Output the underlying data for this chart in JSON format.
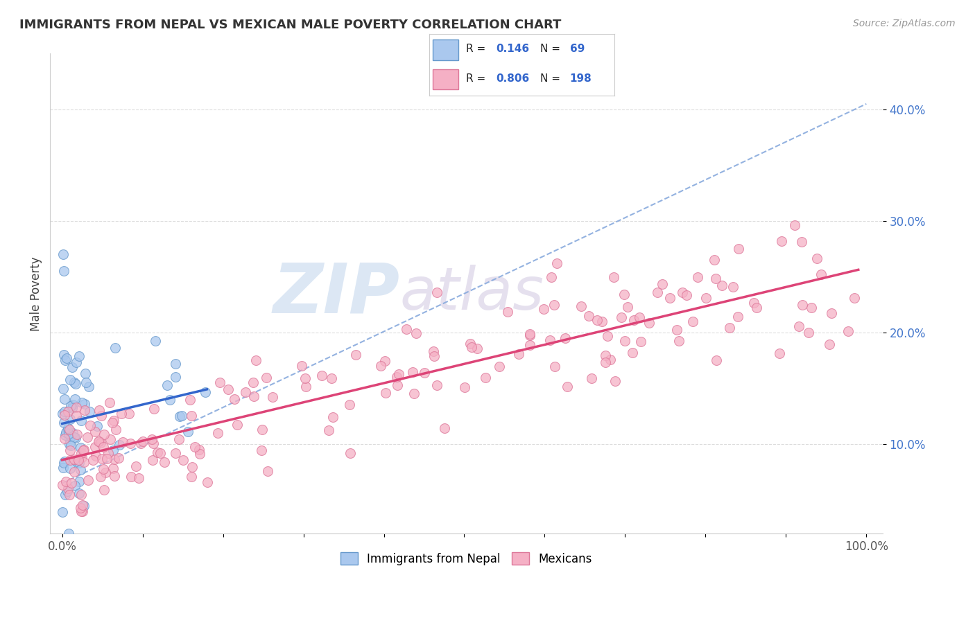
{
  "title": "IMMIGRANTS FROM NEPAL VS MEXICAN MALE POVERTY CORRELATION CHART",
  "source": "Source: ZipAtlas.com",
  "ylabel": "Male Poverty",
  "ytick_vals": [
    0.1,
    0.2,
    0.3,
    0.4
  ],
  "ytick_labels": [
    "10.0%",
    "20.0%",
    "30.0%",
    "40.0%"
  ],
  "legend_labels": [
    "Immigrants from Nepal",
    "Mexicans"
  ],
  "nepal_color": "#aac8ee",
  "nepal_edge": "#6699cc",
  "mexico_color": "#f5b0c5",
  "mexico_edge": "#dd7799",
  "nepal_line_color": "#3366cc",
  "mexico_line_color": "#dd4477",
  "dash_line_color": "#88aadd",
  "watermark_color": "#c5d8ee",
  "background_color": "#ffffff",
  "grid_color": "#dddddd"
}
